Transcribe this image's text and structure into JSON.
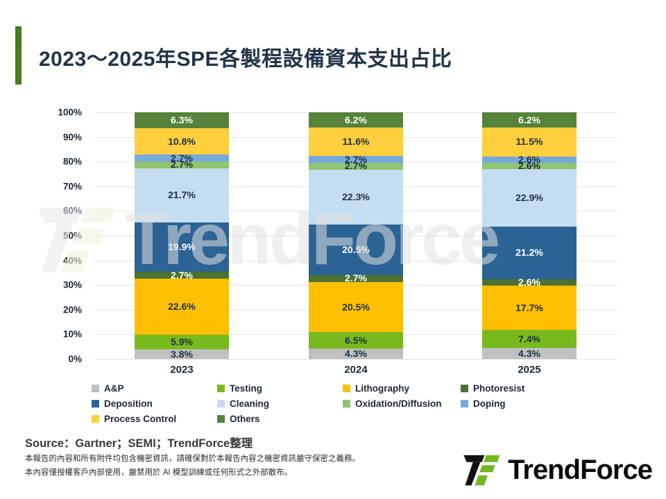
{
  "slide": {
    "title": "2023～2025年SPE各製程設備資本支出占比",
    "accent_color": "#467A23",
    "source_line": "Source：Gartner；SEMI；TrendForce整理",
    "disclaimer_lines": [
      "本報告的內容和所有附件均包含機密資訊，請確保對於本報告內容之機密資訊嚴守保密之義務。",
      "本內容僅授權客戶內部使用，嚴禁用於 AI 模型訓練或任何形式之外部散布。"
    ],
    "logo_text": "TrendForce",
    "logo_green": "#72B626",
    "watermark_text": "TrendForce"
  },
  "chart_data": {
    "type": "bar",
    "stacked": true,
    "title": "2023～2025年SPE各製程設備資本支出占比",
    "xlabel": "",
    "ylabel": "",
    "ylim": [
      0,
      100
    ],
    "grid": true,
    "legend_position": "bottom",
    "categories": [
      "2023",
      "2024",
      "2025"
    ],
    "y_ticks": [
      "100%",
      "90%",
      "80%",
      "70%",
      "60%",
      "50%",
      "40%",
      "30%",
      "20%",
      "10%",
      "0%"
    ],
    "series": [
      {
        "name": "A&P",
        "color": "#C0C0C0",
        "label_color": "dark",
        "values": [
          3.8,
          4.3,
          4.3
        ]
      },
      {
        "name": "Testing",
        "color": "#78BA1E",
        "label_color": "dark",
        "values": [
          5.9,
          6.5,
          7.4
        ]
      },
      {
        "name": "Lithography",
        "color": "#FFC003",
        "label_color": "dark",
        "values": [
          22.6,
          20.5,
          17.7
        ]
      },
      {
        "name": "Photoresist",
        "color": "#4A7231",
        "label_color": "white",
        "values": [
          2.7,
          2.7,
          2.6
        ]
      },
      {
        "name": "Deposition",
        "color": "#2B6394",
        "label_color": "white",
        "values": [
          19.9,
          20.5,
          21.2
        ]
      },
      {
        "name": "Cleaning",
        "color": "#C5DDF1",
        "label_color": "dark",
        "values": [
          21.7,
          22.3,
          22.9
        ]
      },
      {
        "name": "Oxidation/Diffusion",
        "color": "#90C46E",
        "label_color": "dark",
        "values": [
          2.7,
          2.7,
          2.6
        ]
      },
      {
        "name": "Doping",
        "color": "#76A9DE",
        "label_color": "dark",
        "values": [
          2.7,
          2.7,
          2.6
        ]
      },
      {
        "name": "Process Control",
        "color": "#FFCF3E",
        "label_color": "dark",
        "values": [
          10.8,
          11.6,
          11.5
        ]
      },
      {
        "name": "Others",
        "color": "#55833A",
        "label_color": "white",
        "values": [
          6.3,
          6.2,
          6.2
        ]
      }
    ],
    "label_dark_color": "#1F3040",
    "label_white_color": "#FFFFFF"
  }
}
